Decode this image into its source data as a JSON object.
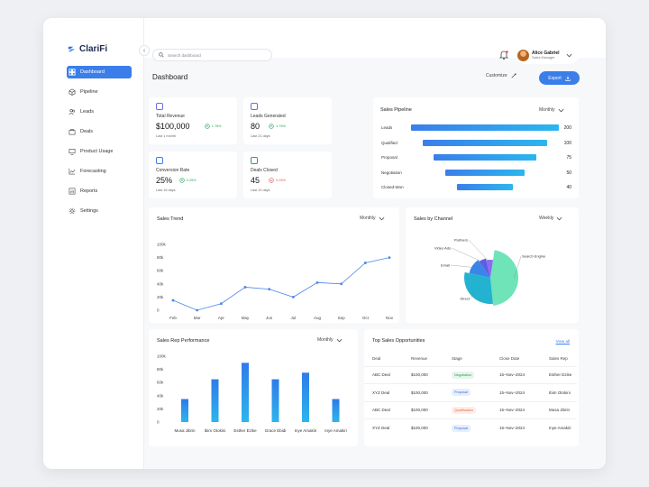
{
  "app": {
    "name": "ClariFi",
    "collapse_icon": "‹"
  },
  "sidebar": {
    "items": [
      {
        "label": "Dashboard",
        "icon": "grid-icon",
        "active": true
      },
      {
        "label": "Pipeline",
        "icon": "cube-icon"
      },
      {
        "label": "Leads",
        "icon": "users-icon"
      },
      {
        "label": "Deals",
        "icon": "briefcase-icon"
      },
      {
        "label": "Product Usage",
        "icon": "monitor-icon"
      },
      {
        "label": "Forecasting",
        "icon": "trend-icon"
      },
      {
        "label": "Reports",
        "icon": "report-icon"
      },
      {
        "label": "Settings",
        "icon": "gear-icon"
      }
    ]
  },
  "topbar": {
    "search_placeholder": "Search dashboard",
    "user": {
      "name": "Alice Gabriel",
      "role": "Sales Manager"
    }
  },
  "page": {
    "title": "Dashboard",
    "customize_label": "Customize",
    "export_label": "Export"
  },
  "kpis": [
    {
      "label": "Total Revenue",
      "value": "$100,000",
      "change": "1.76%",
      "direction": "up",
      "period": "Last 1 month",
      "color": "#6a6fe0"
    },
    {
      "label": "Leads Generated",
      "value": "80",
      "change": "1.76%",
      "direction": "up",
      "period": "Last 21 days",
      "color": "#6a6fe0"
    },
    {
      "label": "Conversion Rate",
      "value": "25%",
      "change": "0.25%",
      "direction": "up",
      "period": "Last 16 days",
      "color": "#3b7eea"
    },
    {
      "label": "Deals Closed",
      "value": "45",
      "change": "0.25%",
      "direction": "down",
      "period": "Last 10 days",
      "color": "#2aa36b"
    }
  ],
  "pipeline": {
    "title": "Sales Pipeline",
    "period": "Monthly",
    "chart_data": {
      "type": "bar",
      "categories": [
        "Leads",
        "Qualified",
        "Proposal",
        "Negotiation",
        "Closed-Won"
      ],
      "values": [
        200,
        100,
        75,
        50,
        40
      ]
    }
  },
  "trend": {
    "title": "Sales Trend",
    "period": "Monthly",
    "chart_data": {
      "type": "line",
      "categories": [
        "Feb",
        "Mar",
        "Apr",
        "May",
        "Jun",
        "Jul",
        "Aug",
        "Sep",
        "Oct",
        "Nov"
      ],
      "values": [
        15000,
        0,
        10000,
        35000,
        32000,
        20000,
        42000,
        40000,
        72000,
        80000
      ],
      "ylim": [
        0,
        100000
      ],
      "yticks": [
        "100k",
        "80k",
        "60k",
        "40k",
        "20k",
        "0"
      ]
    }
  },
  "channel": {
    "title": "Sales by Channel",
    "period": "Weekly",
    "chart_data": {
      "type": "pie",
      "labels": [
        "Search Engine",
        "Direct",
        "Email",
        "Video Ads",
        "Partners"
      ],
      "values": [
        46,
        30,
        12,
        6,
        6
      ],
      "colors": [
        "#6ee4b8",
        "#23b3d0",
        "#3a86e8",
        "#5b5fe6",
        "#8b6cf0"
      ]
    }
  },
  "reps": {
    "title": "Sales Rep Performance",
    "period": "Monthly",
    "chart_data": {
      "type": "bar",
      "categories": [
        "Musa Jibrin",
        "Ibim Otokini",
        "Esther Ezike",
        "Grace Ebidi",
        "Inye Amakiri",
        "Inye Amakiri"
      ],
      "values": [
        35000,
        65000,
        90000,
        65000,
        75000,
        35000
      ],
      "ylim": [
        0,
        100000
      ],
      "yticks": [
        "100k",
        "80k",
        "60k",
        "40k",
        "20k",
        "0"
      ]
    }
  },
  "opportunities": {
    "title": "Top Sales Opportunities",
    "view_all": "View all",
    "columns": [
      "Deal",
      "Revenue",
      "Stage",
      "Close Date",
      "Sales Rep"
    ],
    "rows": [
      {
        "deal": "ABC Deal",
        "revenue": "$100,000",
        "stage": "Negotiation",
        "stage_class": "negotiation",
        "date": "15–Nov–2024",
        "rep": "Esther Ezike"
      },
      {
        "deal": "XYZ Deal",
        "revenue": "$100,000",
        "stage": "Proposal",
        "stage_class": "proposal",
        "date": "15–Nov–2024",
        "rep": "Ibim Otokini"
      },
      {
        "deal": "ABC Deal",
        "revenue": "$100,000",
        "stage": "Qualification",
        "stage_class": "qualification",
        "date": "15–Nov–2024",
        "rep": "Musa Jibrin"
      },
      {
        "deal": "XYZ Deal",
        "revenue": "$100,000",
        "stage": "Proposal",
        "stage_class": "proposal",
        "date": "15–Nov–2024",
        "rep": "Inye Amakiri"
      }
    ]
  }
}
